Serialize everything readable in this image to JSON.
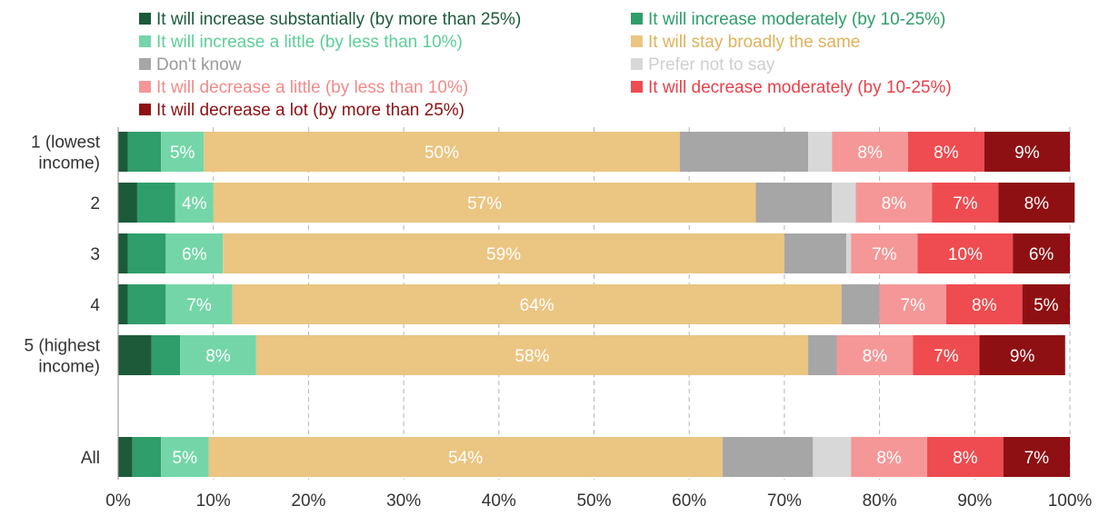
{
  "chart_data": {
    "type": "bar",
    "orientation": "horizontal",
    "stacked": true,
    "title": "",
    "xlabel": "",
    "ylabel": "",
    "xlim": [
      0,
      100
    ],
    "x_ticks": [
      "0%",
      "10%",
      "20%",
      "30%",
      "40%",
      "50%",
      "60%",
      "70%",
      "80%",
      "90%",
      "100%"
    ],
    "grid": "vertical dashed",
    "legend_position": "top",
    "categories": [
      [
        "1 (lowest",
        "income)"
      ],
      [
        "2"
      ],
      [
        "3"
      ],
      [
        "4"
      ],
      [
        "5 (highest",
        "income)"
      ],
      [
        "All"
      ]
    ],
    "series": [
      {
        "name": "It will increase substantially (by more than 25%)",
        "color": "#1d5a3a",
        "legend_color": "#1d5a3a",
        "values": [
          1,
          2,
          1,
          1,
          3.5,
          1.5
        ],
        "labels": [
          "",
          "",
          "",
          "",
          "",
          ""
        ]
      },
      {
        "name": "It will increase moderately (by 10-25%)",
        "color": "#2f9e6a",
        "legend_color": "#2f9e6a",
        "values": [
          3.5,
          4,
          4,
          4,
          3,
          3
        ],
        "labels": [
          "",
          "",
          "",
          "",
          "",
          ""
        ]
      },
      {
        "name": "It will increase a little (by less than 10%)",
        "color": "#74d6a8",
        "legend_color": "#5ccf98",
        "values": [
          4.5,
          4,
          6,
          7,
          8,
          5
        ],
        "labels": [
          "5%",
          "4%",
          "6%",
          "7%",
          "8%",
          "5%"
        ]
      },
      {
        "name": "It will stay broadly the same",
        "color": "#ebc582",
        "legend_color": "#e0b25a",
        "values": [
          50,
          57,
          59,
          64,
          58,
          54
        ],
        "labels": [
          "50%",
          "57%",
          "59%",
          "64%",
          "58%",
          "54%"
        ]
      },
      {
        "name": "Don't know",
        "color": "#a6a6a6",
        "legend_color": "#9a9a9a",
        "values": [
          13.5,
          8,
          6.5,
          4,
          3,
          9.5
        ],
        "labels": [
          "",
          "",
          "",
          "",
          "",
          ""
        ]
      },
      {
        "name": "Prefer not to say",
        "color": "#d8d8d8",
        "legend_color": "#cfcfcf",
        "values": [
          2.5,
          2.5,
          0.5,
          0,
          0,
          4
        ],
        "labels": [
          "",
          "",
          "",
          "",
          "",
          ""
        ]
      },
      {
        "name": "It will decrease a little (by less than 10%)",
        "color": "#f59797",
        "legend_color": "#f28a8a",
        "values": [
          8,
          8,
          7,
          7,
          8,
          8
        ],
        "labels": [
          "8%",
          "8%",
          "7%",
          "7%",
          "8%",
          "8%"
        ]
      },
      {
        "name": "It will decrease moderately (by 10-25%)",
        "color": "#ee4c50",
        "legend_color": "#e8404a",
        "values": [
          8,
          7,
          10,
          8,
          7,
          8
        ],
        "labels": [
          "8%",
          "7%",
          "10%",
          "8%",
          "7%",
          "8%"
        ]
      },
      {
        "name": "It will decrease a lot (by more than 25%)",
        "color": "#8e1013",
        "legend_color": "#8e1013",
        "values": [
          9,
          8,
          6,
          5,
          9,
          7
        ],
        "labels": [
          "9%",
          "8%",
          "6%",
          "5%",
          "9%",
          "7%"
        ]
      }
    ]
  }
}
